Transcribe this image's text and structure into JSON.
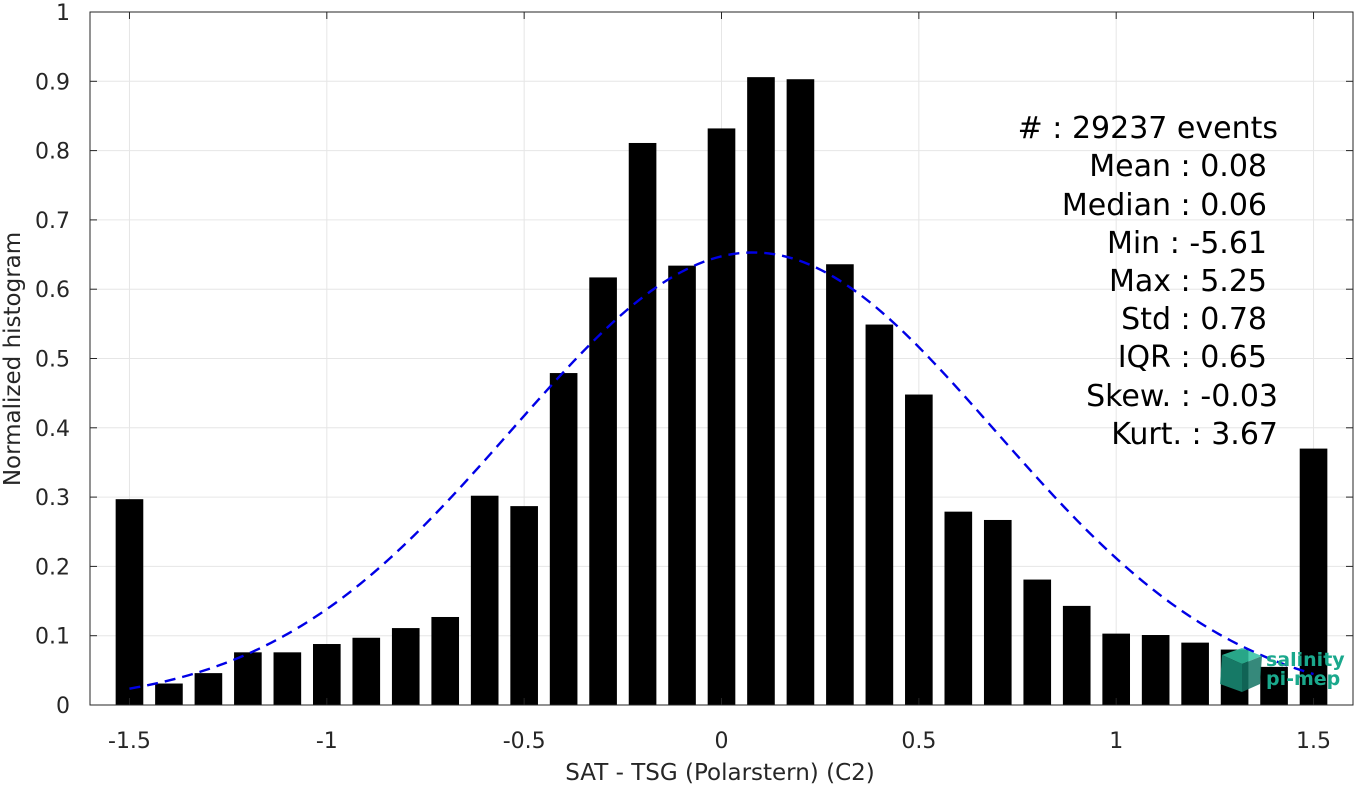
{
  "chart_data": {
    "type": "bar",
    "title": "",
    "xlabel": "SAT - TSG (Polarstern) (C2)",
    "ylabel": "Normalized histogram",
    "xlim": [
      -1.6,
      1.6
    ],
    "ylim": [
      0,
      1
    ],
    "grid": true,
    "x_ticks": [
      "-1.5",
      "-1",
      "-0.5",
      "0",
      "0.5",
      "1",
      "1.5"
    ],
    "x_tick_values": [
      -1.5,
      -1,
      -0.5,
      0,
      0.5,
      1,
      1.5
    ],
    "y_ticks": [
      "0",
      "0.1",
      "0.2",
      "0.3",
      "0.4",
      "0.5",
      "0.6",
      "0.7",
      "0.8",
      "0.9",
      "1"
    ],
    "y_tick_values": [
      0,
      0.1,
      0.2,
      0.3,
      0.4,
      0.5,
      0.6,
      0.7,
      0.8,
      0.9,
      1
    ],
    "bars": {
      "x": [
        -1.5,
        -1.4,
        -1.3,
        -1.2,
        -1.1,
        -1.0,
        -0.9,
        -0.8,
        -0.7,
        -0.6,
        -0.5,
        -0.4,
        -0.3,
        -0.2,
        -0.1,
        0.0,
        0.1,
        0.2,
        0.3,
        0.4,
        0.5,
        0.6,
        0.7,
        0.8,
        0.9,
        1.0,
        1.1,
        1.2,
        1.3,
        1.4,
        1.5
      ],
      "values": [
        0.297,
        0.031,
        0.046,
        0.076,
        0.076,
        0.088,
        0.097,
        0.111,
        0.127,
        0.302,
        0.287,
        0.479,
        0.617,
        0.811,
        0.634,
        0.832,
        0.906,
        0.903,
        0.636,
        0.549,
        0.448,
        0.279,
        0.267,
        0.181,
        0.143,
        0.103,
        0.101,
        0.09,
        0.08,
        0.055,
        0.37
      ],
      "bar_width": 0.07,
      "color": "#000000"
    },
    "fit_curve": {
      "style": "dashed",
      "color": "#0000e6",
      "mean": 0.08,
      "std": 0.613,
      "peak": 0.653,
      "x_range": [
        -1.5,
        1.5
      ]
    },
    "annotations": [
      "#  : 29237 events",
      "Mean : 0.08",
      "Median : 0.06",
      "Min : -5.61",
      "Max : 5.25",
      "Std : 0.78",
      "IQR : 0.65",
      "Skew. : -0.03",
      "Kurt. : 3.67"
    ]
  },
  "logo": {
    "line1": "salinity",
    "line2": "pi-mep",
    "color": "#1aa88c"
  }
}
